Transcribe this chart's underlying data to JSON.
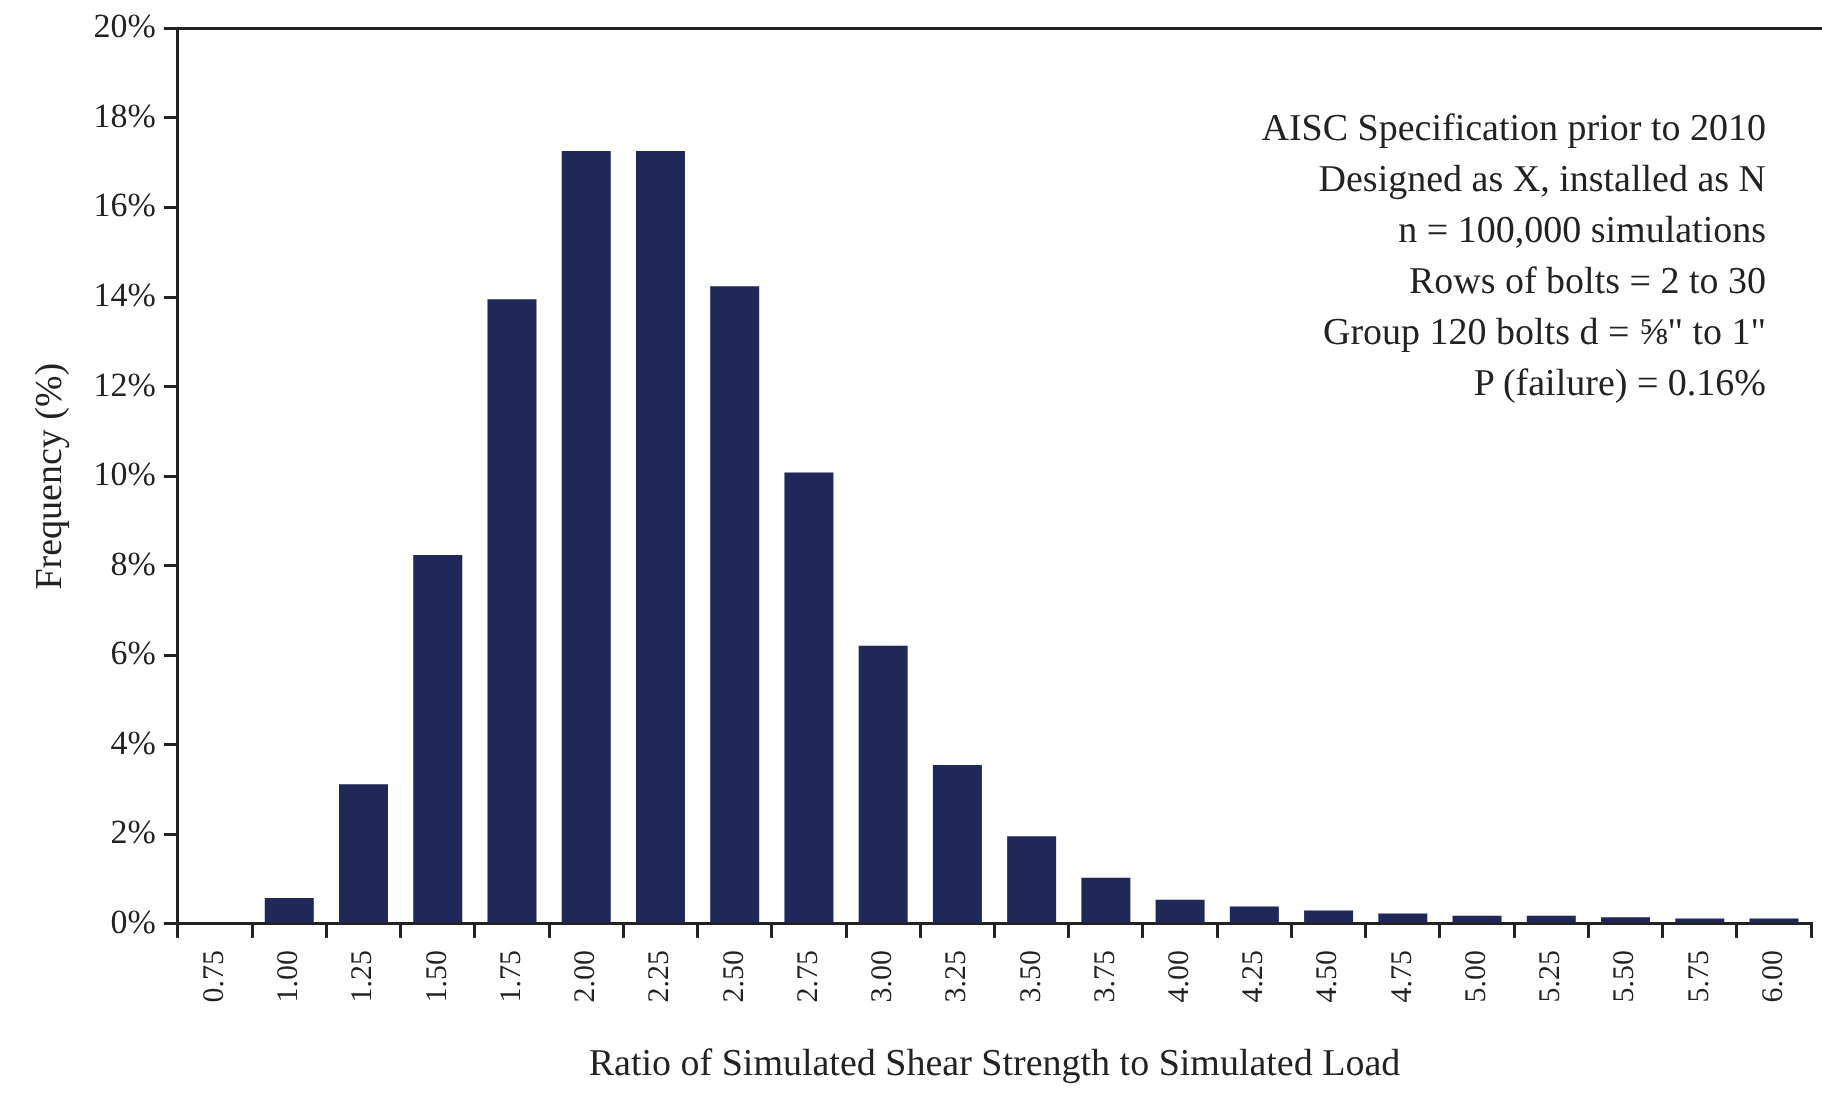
{
  "chart_data": {
    "type": "bar",
    "xlabel": "Ratio of Simulated Shear Strength to Simulated Load",
    "ylabel": "Frequency (%)",
    "categories": [
      "0.75",
      "1.00",
      "1.25",
      "1.50",
      "1.75",
      "2.00",
      "2.25",
      "2.50",
      "2.75",
      "3.00",
      "3.25",
      "3.50",
      "3.75",
      "4.00",
      "4.25",
      "4.50",
      "4.75",
      "5.00",
      "5.25",
      "5.50",
      "5.75",
      "6.00"
    ],
    "values": [
      null,
      0.58,
      3.12,
      8.24,
      13.95,
      17.26,
      17.26,
      14.24,
      10.08,
      6.21,
      3.55,
      1.96,
      1.03,
      0.54,
      0.39,
      0.3,
      0.23,
      0.18,
      0.18,
      0.15,
      0.12,
      0.12
    ],
    "color": "#1f2858",
    "ylim": [
      0,
      20
    ],
    "yticks": [
      {
        "value": 0,
        "label": "0%"
      },
      {
        "value": 2,
        "label": "2%"
      },
      {
        "value": 4,
        "label": "4%"
      },
      {
        "value": 6,
        "label": "6%"
      },
      {
        "value": 8,
        "label": "8%"
      },
      {
        "value": 10,
        "label": "10%"
      },
      {
        "value": 12,
        "label": "12%"
      },
      {
        "value": 14,
        "label": "14%"
      },
      {
        "value": 16,
        "label": "16%"
      },
      {
        "value": 18,
        "label": "18%"
      },
      {
        "value": 20,
        "label": "20%"
      }
    ],
    "annotations": [
      "AISC Specification prior to 2010",
      "Designed as X, installed as N",
      "n = 100,000 simulations",
      "Rows of bolts = 2 to 30",
      "Group 120 bolts d = ⅝\" to 1\"",
      "P (failure) = 0.16%"
    ],
    "grid": false,
    "legend": false
  }
}
